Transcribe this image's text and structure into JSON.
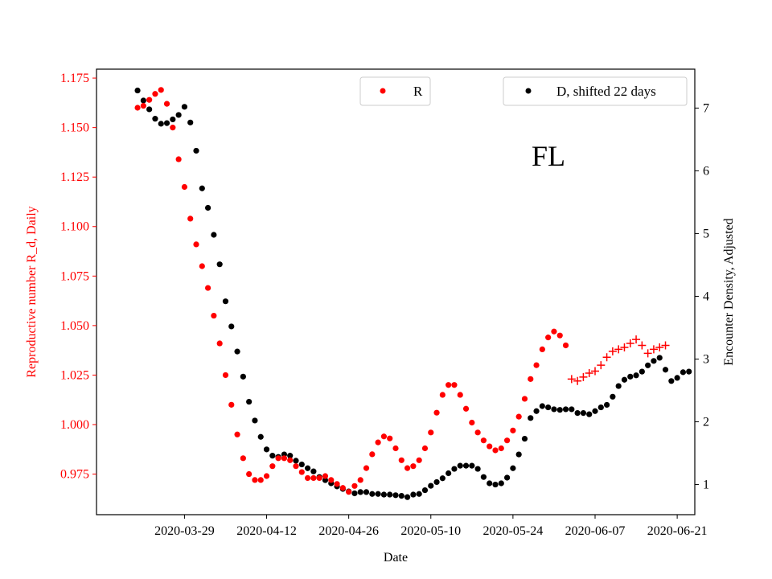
{
  "chart_data": {
    "type": "scatter",
    "xlabel": "Date",
    "ylabel_left": "Reproductive number R_d, Daily",
    "ylabel_right": "Encounter Density, Adjusted",
    "annotation": "FL",
    "xlim": [
      "2020-03-14",
      "2020-06-24"
    ],
    "ylim_left": [
      0.9545,
      1.1795
    ],
    "ylim_right": [
      0.52,
      7.62
    ],
    "x_ticks": [
      "2020-03-29",
      "2020-04-12",
      "2020-04-26",
      "2020-05-10",
      "2020-05-24",
      "2020-06-07",
      "2020-06-21"
    ],
    "y_ticks_left": [
      "0.975",
      "1.000",
      "1.025",
      "1.050",
      "1.075",
      "1.100",
      "1.125",
      "1.150",
      "1.175"
    ],
    "y_ticks_right": [
      "1",
      "2",
      "3",
      "4",
      "5",
      "6",
      "7"
    ],
    "colors": {
      "R": "#ff0000",
      "D": "#000000",
      "left_axis": "#ff0000",
      "right_axis": "#000000"
    },
    "legend": {
      "R_label": "R",
      "D_label": "D, shifted 22 days",
      "R_placement": "top-center",
      "D_placement": "top-right"
    },
    "series": [
      {
        "name": "R",
        "marker": "dot",
        "axis": "left",
        "start_date": "2020-03-21",
        "values": [
          1.16,
          1.161,
          1.164,
          1.167,
          1.169,
          1.162,
          1.15,
          1.134,
          1.12,
          1.104,
          1.091,
          1.08,
          1.069,
          1.055,
          1.041,
          1.025,
          1.01,
          0.995,
          0.983,
          0.975,
          0.972,
          0.972,
          0.974,
          0.979,
          0.983,
          0.983,
          0.982,
          0.979,
          0.976,
          0.973,
          0.973,
          0.973,
          0.974,
          0.972,
          0.97,
          0.968,
          0.966,
          0.969,
          0.972,
          0.978,
          0.985,
          0.991,
          0.994,
          0.993,
          0.988,
          0.982,
          0.978,
          0.979,
          0.982,
          0.988,
          0.996,
          1.006,
          1.015,
          1.02,
          1.02,
          1.015,
          1.008,
          1.001,
          0.996,
          0.992,
          0.989,
          0.987,
          0.988,
          0.992,
          0.997,
          1.004,
          1.013,
          1.023,
          1.03,
          1.038,
          1.044,
          1.047,
          1.045,
          1.04
        ]
      },
      {
        "name": "R",
        "marker": "plus",
        "axis": "left",
        "start_date": "2020-06-03",
        "values": [
          1.023,
          1.022,
          1.024,
          1.026,
          1.027,
          1.03,
          1.034,
          1.037,
          1.038,
          1.039,
          1.041,
          1.043,
          1.04,
          1.036,
          1.038,
          1.039,
          1.04
        ]
      },
      {
        "name": "D, shifted 22 days",
        "marker": "dot",
        "axis": "right",
        "start_date": "2020-03-21",
        "values": [
          7.28,
          7.12,
          6.98,
          6.83,
          6.75,
          6.76,
          6.82,
          6.89,
          7.02,
          6.77,
          6.32,
          5.72,
          5.41,
          4.98,
          4.51,
          3.92,
          3.52,
          3.12,
          2.72,
          2.32,
          2.02,
          1.76,
          1.56,
          1.46,
          1.44,
          1.48,
          1.46,
          1.38,
          1.32,
          1.26,
          1.21,
          1.12,
          1.07,
          1.02,
          0.97,
          0.93,
          0.89,
          0.86,
          0.88,
          0.88,
          0.85,
          0.85,
          0.84,
          0.84,
          0.83,
          0.82,
          0.8,
          0.84,
          0.85,
          0.91,
          0.98,
          1.04,
          1.1,
          1.18,
          1.25,
          1.3,
          1.3,
          1.3,
          1.25,
          1.12,
          1.02,
          1.0,
          1.02,
          1.11,
          1.26,
          1.48,
          1.73,
          2.06,
          2.17,
          2.25,
          2.23,
          2.2,
          2.19,
          2.2,
          2.2,
          2.14,
          2.14,
          2.12,
          2.17,
          2.23,
          2.27,
          2.4,
          2.57,
          2.67,
          2.72,
          2.74,
          2.8,
          2.9,
          2.97,
          3.02,
          2.83,
          2.65,
          2.7,
          2.79,
          2.8
        ]
      }
    ]
  }
}
